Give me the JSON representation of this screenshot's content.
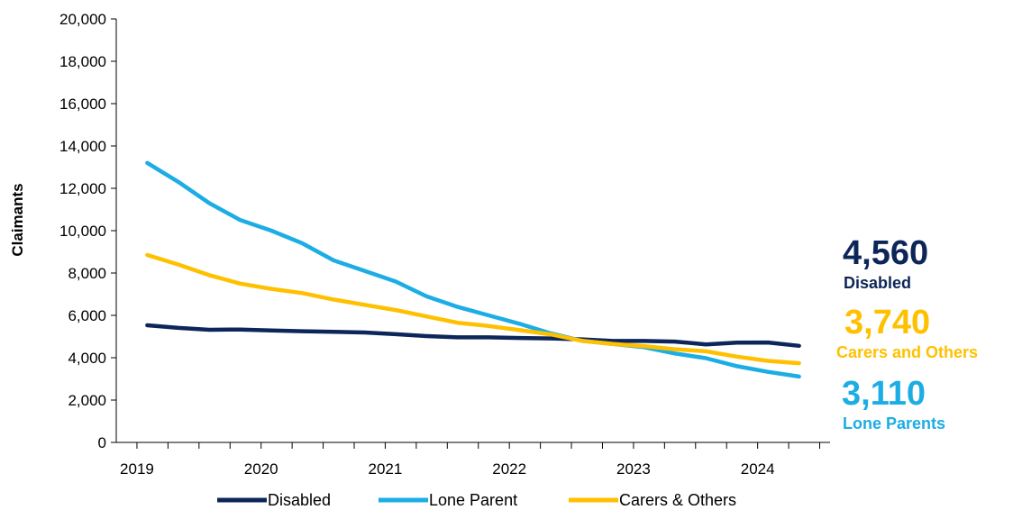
{
  "chart_data": {
    "type": "line",
    "ylabel": "Claimants",
    "xlabel": "",
    "ylim": [
      0,
      20000
    ],
    "y_ticks": [
      0,
      2000,
      4000,
      6000,
      8000,
      10000,
      12000,
      14000,
      16000,
      18000,
      20000
    ],
    "y_tick_labels": [
      "0",
      "2,000",
      "4,000",
      "6,000",
      "8,000",
      "10,000",
      "12,000",
      "14,000",
      "16,000",
      "18,000",
      "20,000"
    ],
    "x_tick_labels": [
      "2019",
      "2020",
      "2021",
      "2022",
      "2023",
      "2024"
    ],
    "x_tick_dates": [
      "2019-01",
      "2020-01",
      "2021-01",
      "2022-01",
      "2023-01",
      "2024-01"
    ],
    "x_range": [
      "2018-11",
      "2024-08"
    ],
    "x": [
      "2019-02",
      "2019-05",
      "2019-08",
      "2019-11",
      "2020-02",
      "2020-05",
      "2020-08",
      "2020-11",
      "2021-02",
      "2021-05",
      "2021-08",
      "2021-11",
      "2022-02",
      "2022-05",
      "2022-08",
      "2022-11",
      "2023-02",
      "2023-05",
      "2023-08",
      "2023-11",
      "2024-02",
      "2024-05"
    ],
    "grid": false,
    "legend": "bottom",
    "series": [
      {
        "name": "Disabled",
        "color": "#0d2659",
        "values": [
          5530,
          5410,
          5320,
          5330,
          5290,
          5250,
          5220,
          5190,
          5110,
          5020,
          4960,
          4960,
          4930,
          4910,
          4870,
          4790,
          4790,
          4760,
          4630,
          4710,
          4720,
          4560
        ]
      },
      {
        "name": "Lone Parent",
        "color": "#1cade4",
        "values": [
          13200,
          12300,
          11300,
          10500,
          10000,
          9400,
          8600,
          8100,
          7600,
          6900,
          6400,
          6000,
          5600,
          5150,
          4800,
          4650,
          4500,
          4200,
          3980,
          3600,
          3330,
          3110
        ]
      },
      {
        "name": "Carers & Others",
        "color": "#ffc000",
        "values": [
          8850,
          8400,
          7900,
          7500,
          7250,
          7050,
          6750,
          6500,
          6250,
          5950,
          5650,
          5500,
          5300,
          5100,
          4800,
          4650,
          4550,
          4400,
          4300,
          4050,
          3850,
          3740
        ]
      }
    ]
  },
  "callouts": {
    "disabled": {
      "value": "4,560",
      "label": "Disabled",
      "color": "#0d2659"
    },
    "carers": {
      "value": "3,740",
      "label": "Carers and Others",
      "color": "#ffc000"
    },
    "lone": {
      "value": "3,110",
      "label": "Lone Parents",
      "color": "#1cade4"
    }
  }
}
